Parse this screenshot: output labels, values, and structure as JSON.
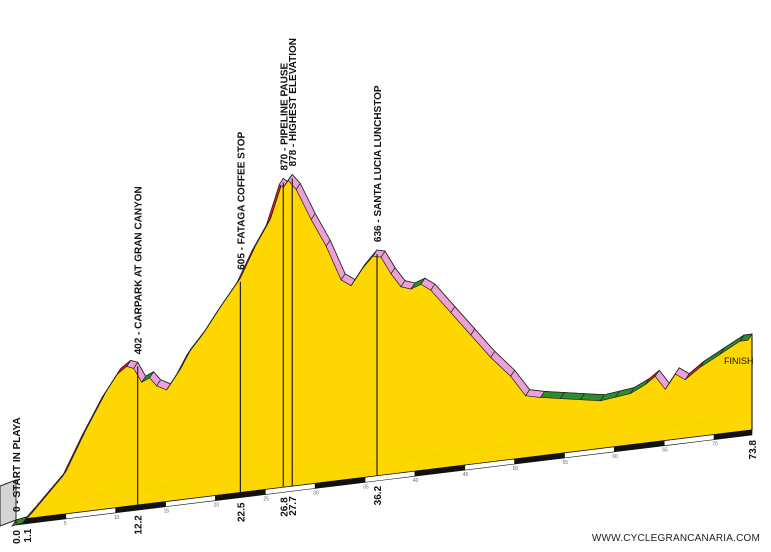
{
  "footer_text": "WWW.CYCLEGRANCANARIA.COM",
  "finish_label": "FINISH",
  "chart_data": {
    "type": "area",
    "title": "",
    "xlabel": "",
    "ylabel": "",
    "xlim": [
      0,
      73.8
    ],
    "profile": {
      "km": [
        0,
        1.1,
        2,
        3,
        5,
        7,
        9,
        10.5,
        11.5,
        12.2,
        13,
        13.8,
        14.5,
        15.5,
        16.5,
        17.5,
        19,
        20.5,
        22.5,
        24,
        25.5,
        26.8,
        27.2,
        27.7,
        28.5,
        30,
        31.5,
        33,
        34,
        35,
        36.2,
        37,
        38,
        39,
        40,
        41,
        42,
        44,
        46,
        48,
        50,
        51.5,
        53,
        55,
        57,
        59,
        60.5,
        62,
        63.5,
        64.5,
        65.5,
        66.5,
        67.5,
        69,
        71,
        73,
        73.8
      ],
      "elevation": [
        0,
        5,
        30,
        60,
        120,
        230,
        330,
        390,
        410,
        402,
        360,
        370,
        345,
        330,
        370,
        420,
        470,
        530,
        605,
        690,
        760,
        870,
        860,
        878,
        850,
        760,
        680,
        580,
        560,
        600,
        636,
        630,
        580,
        540,
        530,
        540,
        520,
        450,
        380,
        310,
        250,
        190,
        180,
        170,
        160,
        150,
        155,
        160,
        180,
        200,
        160,
        200,
        180,
        210,
        240,
        270,
        270
      ]
    },
    "pois": [
      {
        "km": 0.0,
        "label": "0 - START IN PLAYA",
        "km_label": "0.0"
      },
      {
        "km": 1.1,
        "label": "",
        "km_label": "1.1"
      },
      {
        "km": 12.2,
        "label": "402 - CARPARK AT GRAN CANYON",
        "km_label": "12.2"
      },
      {
        "km": 22.5,
        "label": "605 - FATAGA COFFEE STOP",
        "km_label": "22.5"
      },
      {
        "km": 26.8,
        "label": "870 - PIPELINE PAUSE",
        "km_label": "26.8"
      },
      {
        "km": 27.7,
        "label": "878 - HIGHEST ELEVATION",
        "km_label": "27.7"
      },
      {
        "km": 36.2,
        "label": "636 - SANTA LUCIA LUNCHSTOP",
        "km_label": "36.2"
      },
      {
        "km": 73.8,
        "label": "",
        "km_label": "73.8"
      }
    ],
    "axis_ticks": [
      5,
      10,
      15,
      20,
      25,
      30,
      35,
      40,
      45,
      50,
      55,
      60,
      65,
      70
    ],
    "colors": {
      "fill": "#FFD700",
      "side": "#D4D4D4",
      "climb": "#E8141B",
      "descent": "#EBA0D8",
      "flat": "#2E8B2E",
      "outline": "#222222",
      "base": "#111111"
    }
  }
}
